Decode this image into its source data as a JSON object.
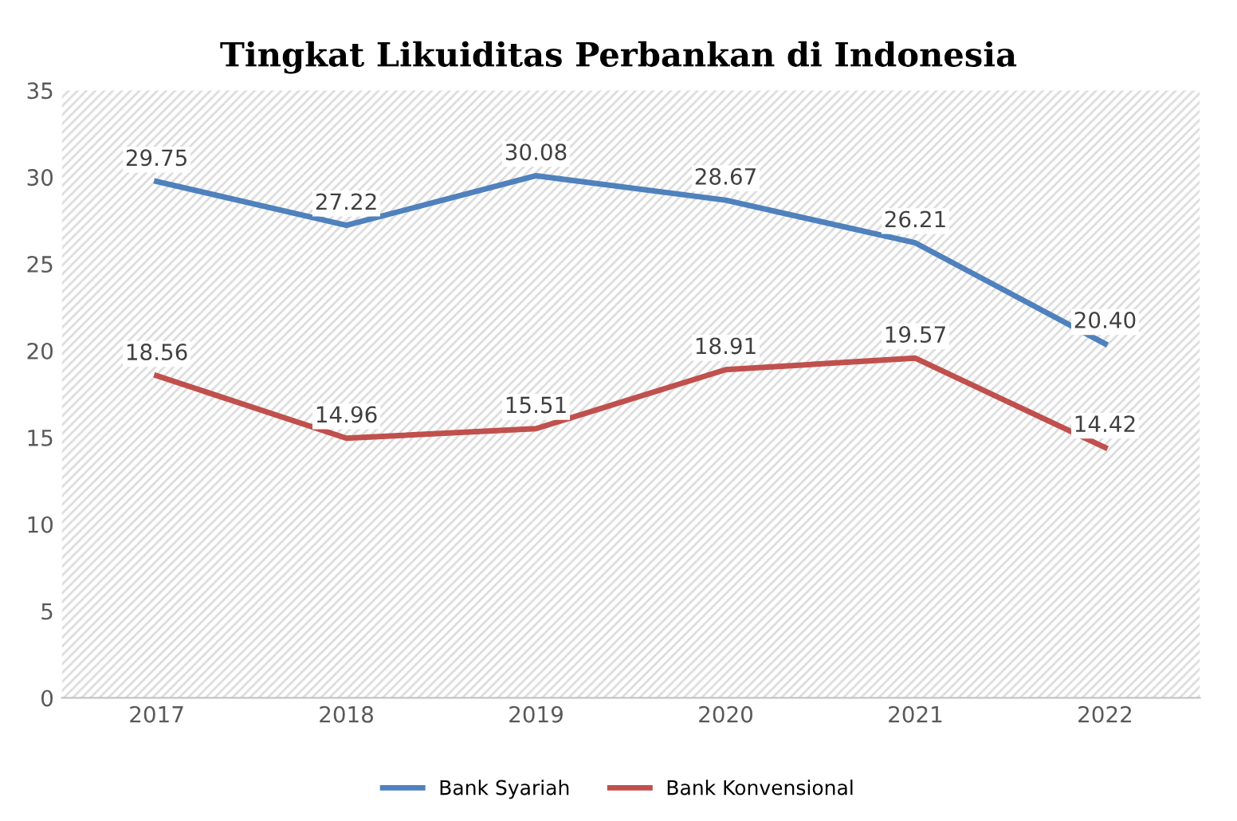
{
  "chart_data": {
    "type": "line",
    "title": "Tingkat Likuiditas Perbankan di Indonesia",
    "categories": [
      "2017",
      "2018",
      "2019",
      "2020",
      "2021",
      "2022"
    ],
    "series": [
      {
        "name": "Bank Syariah",
        "color": "#4f81bd",
        "values": [
          29.75,
          27.22,
          30.08,
          28.67,
          26.21,
          20.4
        ],
        "value_labels": [
          "29.75",
          "27.22",
          "30.08",
          "28.67",
          "26.21",
          "20.40"
        ]
      },
      {
        "name": "Bank Konvensional",
        "color": "#c0504d",
        "values": [
          18.56,
          14.96,
          15.51,
          18.91,
          19.57,
          14.42
        ],
        "value_labels": [
          "18.56",
          "14.96",
          "15.51",
          "18.91",
          "19.57",
          "14.42"
        ]
      }
    ],
    "ylim": [
      0,
      35
    ],
    "yticks": [
      0,
      5,
      10,
      15,
      20,
      25,
      30,
      35
    ],
    "grid": false,
    "legend": "bottom",
    "marker": "none",
    "line_style": "solid"
  }
}
